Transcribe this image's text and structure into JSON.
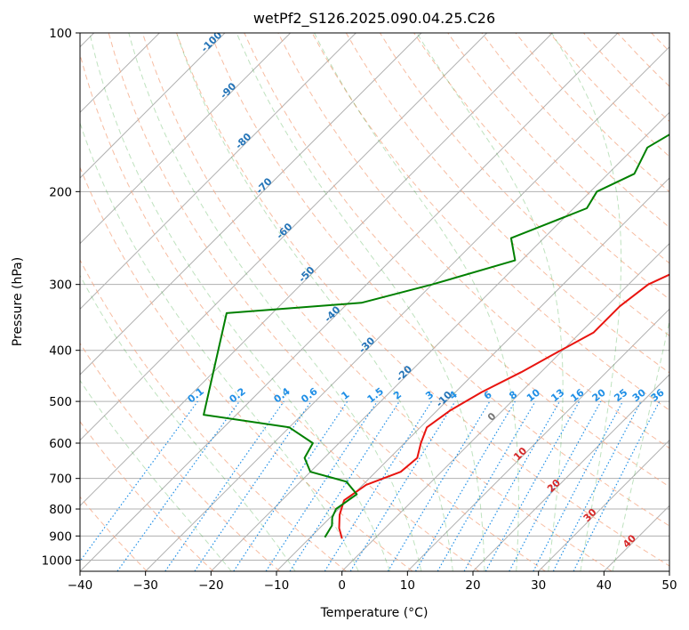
{
  "chart_data": {
    "type": "line",
    "subtype": "skew-T log-P diagram",
    "title": "wetPf2_S126.2025.090.04.25.C26",
    "xlabel": "Temperature (°C)",
    "ylabel": "Pressure (hPa)",
    "xlim": [
      -40,
      50
    ],
    "ylim": [
      1050,
      100
    ],
    "x_ticks": [
      -40,
      -30,
      -20,
      -10,
      0,
      10,
      20,
      30,
      40,
      50
    ],
    "y_ticks": [
      1000,
      900,
      800,
      700,
      600,
      500,
      400,
      300,
      200,
      100
    ],
    "series": [
      {
        "name": "Temperature",
        "color": "#e8140f",
        "points": [
          [
            -5,
            910
          ],
          [
            -7,
            870
          ],
          [
            -9,
            820
          ],
          [
            -10.5,
            770
          ],
          [
            -9.5,
            720
          ],
          [
            -6.2,
            680
          ],
          [
            -5.8,
            640
          ],
          [
            -7.5,
            600
          ],
          [
            -9,
            560
          ],
          [
            -8,
            520
          ],
          [
            -6,
            480
          ],
          [
            -3,
            440
          ],
          [
            -1,
            410
          ],
          [
            2,
            370
          ],
          [
            2,
            330
          ],
          [
            3,
            300
          ],
          [
            8,
            265
          ],
          [
            16,
            240
          ],
          [
            22,
            210
          ],
          [
            28,
            185
          ],
          [
            34,
            165
          ],
          [
            40,
            150
          ],
          [
            45,
            140
          ],
          [
            52,
            125
          ],
          [
            58,
            112
          ],
          [
            60,
            100
          ]
        ]
      },
      {
        "name": "Dewpoint",
        "color": "#008000",
        "points": [
          [
            -7.8,
            905
          ],
          [
            -8.5,
            860
          ],
          [
            -9.7,
            830
          ],
          [
            -10.4,
            800
          ],
          [
            -9.5,
            750
          ],
          [
            -13,
            710
          ],
          [
            -20,
            680
          ],
          [
            -23,
            640
          ],
          [
            -24,
            600
          ],
          [
            -30,
            560
          ],
          [
            -45,
            530
          ],
          [
            -57,
            340
          ],
          [
            -38,
            325
          ],
          [
            -30,
            300
          ],
          [
            -21,
            270
          ],
          [
            -25,
            245
          ],
          [
            -18,
            215
          ],
          [
            -19,
            200
          ],
          [
            -16,
            185
          ],
          [
            -18,
            165
          ],
          [
            -14,
            140
          ],
          [
            -9,
            125
          ],
          [
            -5,
            110
          ],
          [
            -5,
            100
          ]
        ]
      }
    ],
    "dry_adiabats_K": [
      210,
      220,
      230,
      240,
      250,
      260,
      270,
      280,
      290,
      300,
      310,
      320,
      330,
      340,
      350,
      360,
      370,
      380,
      390,
      400,
      410,
      420,
      430,
      440,
      450,
      460,
      470,
      480
    ],
    "moist_adiabats_C": [
      -20,
      -10,
      0,
      5,
      10,
      15,
      20,
      25,
      30,
      35,
      40
    ],
    "mixing_ratio_lines_gkg": [
      0.1,
      0.2,
      0.4,
      0.6,
      1,
      1.5,
      2,
      3,
      4,
      6,
      8,
      10,
      13,
      16,
      20,
      25,
      30,
      36
    ],
    "isotherm_labels": [
      {
        "text": "-100",
        "value": -100,
        "pressure": 105
      },
      {
        "text": "-90",
        "value": -90,
        "pressure": 130
      },
      {
        "text": "-80",
        "value": -80,
        "pressure": 162
      },
      {
        "text": "-70",
        "value": -70,
        "pressure": 197
      },
      {
        "text": "-60",
        "value": -60,
        "pressure": 240
      },
      {
        "text": "-50",
        "value": -50,
        "pressure": 290
      },
      {
        "text": "-40",
        "value": -40,
        "pressure": 345
      },
      {
        "text": "-30",
        "value": -30,
        "pressure": 395
      },
      {
        "text": "-20",
        "value": -20,
        "pressure": 447
      },
      {
        "text": "-10",
        "value": -10,
        "pressure": 500
      }
    ],
    "mixing_ratio_labels": [
      "0.1",
      "0.2",
      "0.4",
      "0.6",
      "1",
      "1.5",
      "2",
      "3",
      "4",
      "6",
      "8",
      "10",
      "13",
      "16",
      "20",
      "25",
      "30",
      "36"
    ],
    "isotherm_labels_warm": [
      {
        "text": "0",
        "value": 0,
        "pressure": 540,
        "style": "zero"
      },
      {
        "text": "10",
        "value": 10,
        "pressure": 635,
        "style": "warm"
      },
      {
        "text": "20",
        "value": 20,
        "pressure": 730,
        "style": "warm"
      },
      {
        "text": "30",
        "value": 30,
        "pressure": 830,
        "style": "warm"
      },
      {
        "text": "40",
        "value": 40,
        "pressure": 930,
        "style": "warm"
      }
    ],
    "grid": true
  }
}
